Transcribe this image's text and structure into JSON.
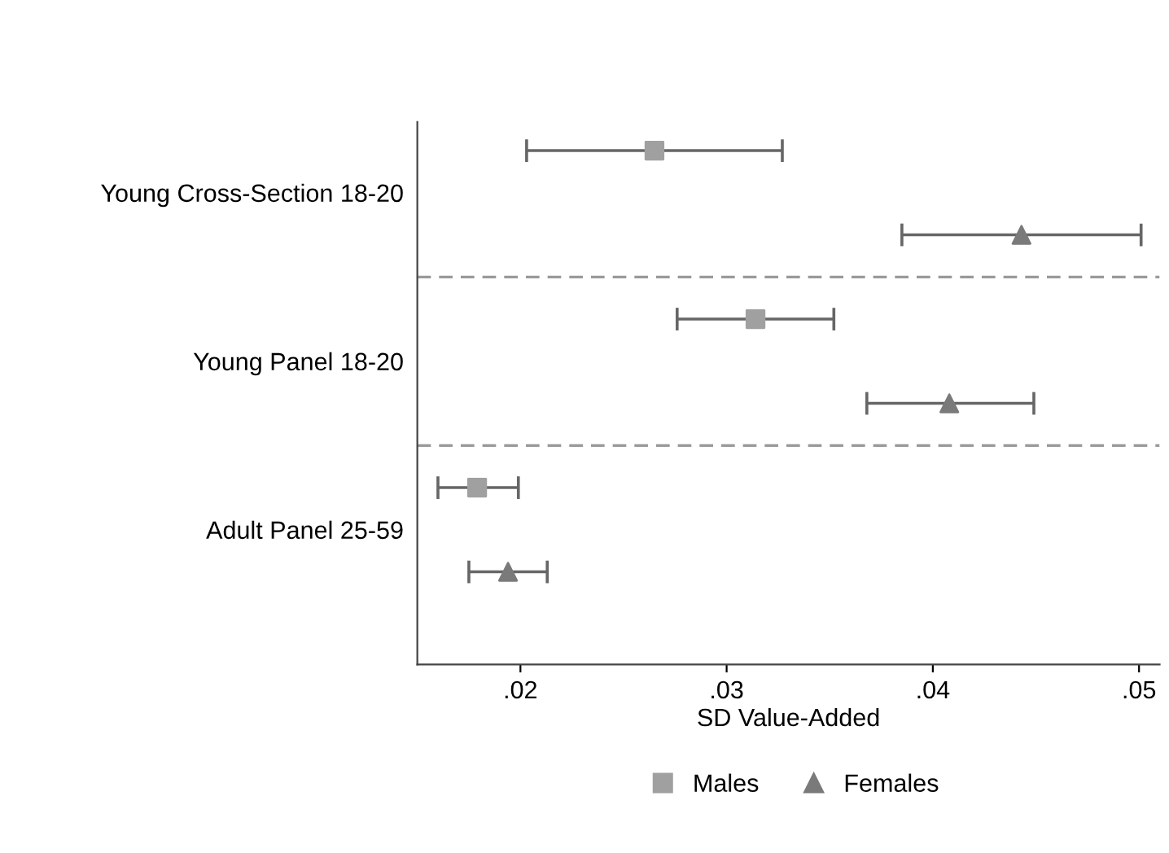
{
  "chart_data": {
    "type": "scatter",
    "orientation": "horizontal",
    "xlabel": "SD Value-Added",
    "categories": [
      "Young Cross-Section 18-20",
      "Young Panel 18-20",
      "Adult Panel 25-59"
    ],
    "series": [
      {
        "name": "Males",
        "color": "#a0a0a0",
        "marker": "square",
        "values": [
          0.0265,
          0.0314,
          0.0179
        ],
        "errors": [
          [
            0.0203,
            0.0327
          ],
          [
            0.0276,
            0.0352
          ],
          [
            0.016,
            0.0199
          ]
        ]
      },
      {
        "name": "Females",
        "color": "#7a7a7a",
        "marker": "triangle",
        "values": [
          0.0443,
          0.0408,
          0.0194
        ],
        "errors": [
          [
            0.0385,
            0.0501
          ],
          [
            0.0368,
            0.0449
          ],
          [
            0.0175,
            0.0213
          ]
        ]
      }
    ],
    "xlim": [
      0.015,
      0.051
    ],
    "xticks": [
      {
        "value": 0.02,
        "label": ".02"
      },
      {
        "value": 0.03,
        "label": ".03"
      },
      {
        "value": 0.04,
        "label": ".04"
      },
      {
        "value": 0.05,
        "label": ".05"
      }
    ],
    "legend": "bottom",
    "grid": false
  }
}
